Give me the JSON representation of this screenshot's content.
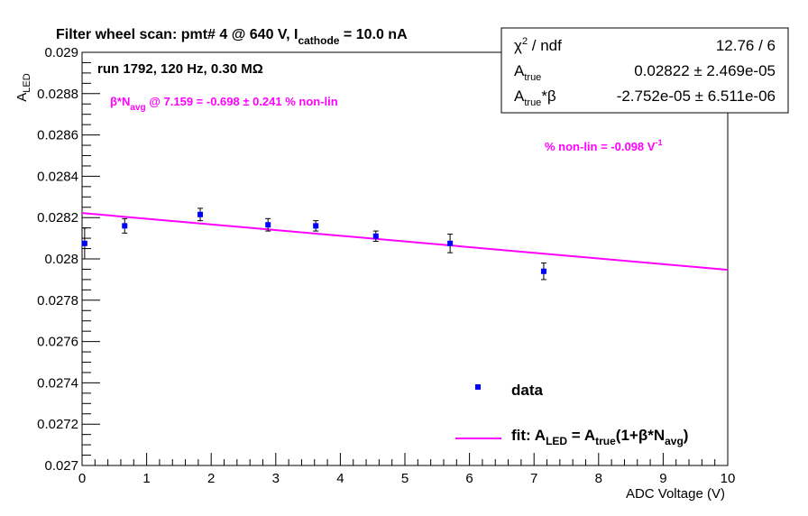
{
  "chart_data": {
    "type": "scatter",
    "title_main": "Filter wheel scan: pmt#   4 @   640 V, I",
    "title_sub": "cathode",
    "title_tail": " = 10.0 nA",
    "run_info": "run 1792, 120 Hz, 0.30 MΩ",
    "beta_note": {
      "pre": "β*N",
      "sub": "avg",
      "post": " @ 7.159 = -0.698 ± 0.241 % non-lin"
    },
    "nonlin_note": {
      "pre": "% non-lin = -0.098 V",
      "sup": "-1"
    },
    "xlabel": "ADC Voltage (V)",
    "ylabel": {
      "pre": "A",
      "sub": "LED"
    },
    "xlim": [
      0,
      10
    ],
    "ylim": [
      0.027,
      0.029
    ],
    "x_ticks": [
      "0",
      "1",
      "2",
      "3",
      "4",
      "5",
      "6",
      "7",
      "8",
      "9",
      "10"
    ],
    "y_ticks": [
      "0.027",
      "0.0272",
      "0.0274",
      "0.0276",
      "0.0278",
      "0.028",
      "0.0282",
      "0.0284",
      "0.0286",
      "0.0288",
      "0.029"
    ],
    "series": [
      {
        "name": "data",
        "color": "#0000ff",
        "x": [
          0.04,
          0.66,
          1.83,
          2.88,
          3.62,
          4.55,
          5.7,
          7.15
        ],
        "y": [
          0.028075,
          0.02816,
          0.028215,
          0.028165,
          0.02816,
          0.02811,
          0.028075,
          0.02794
        ],
        "yerr": [
          7.5e-05,
          3.5e-05,
          3e-05,
          3e-05,
          2.5e-05,
          2.5e-05,
          4.5e-05,
          4e-05
        ]
      }
    ],
    "fit_line": {
      "color": "#ff00ff",
      "x": [
        0,
        10
      ],
      "y": [
        0.028222,
        0.027947
      ]
    },
    "stats_box": [
      {
        "label_pre": "χ",
        "label_sup": "2",
        "label_post": " / ndf",
        "value": "12.76 / 6"
      },
      {
        "label_pre": "A",
        "label_sub": "true",
        "label_post": "",
        "value": "0.02822 ± 2.469e-05"
      },
      {
        "label_pre": "A",
        "label_sub": "true",
        "label_post": "*β",
        "value": "-2.752e-05 ± 6.511e-06"
      }
    ],
    "legend": {
      "data_label": "data",
      "fit_pre": "fit: A",
      "fit_sub1": "LED",
      "fit_mid": " = A",
      "fit_sub2": "true",
      "fit_mid2": "(1+β*N",
      "fit_sub3": "avg",
      "fit_post": ")"
    },
    "grid": false
  }
}
